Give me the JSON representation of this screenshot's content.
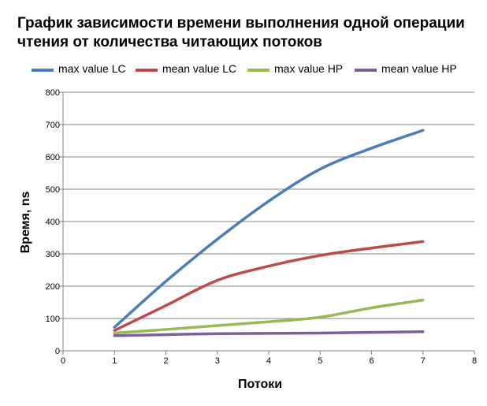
{
  "chart_data": {
    "type": "line",
    "title": "График зависимости времени выполнения одной операции чтения от количества читающих потоков",
    "xlabel": "Потоки",
    "ylabel": "Время, ns",
    "xlim": [
      0,
      8
    ],
    "ylim": [
      0,
      800
    ],
    "xticks": [
      0,
      1,
      2,
      3,
      4,
      5,
      6,
      7,
      8
    ],
    "yticks": [
      0,
      100,
      200,
      300,
      400,
      500,
      600,
      700,
      800
    ],
    "grid": "horizontal",
    "legend": "top",
    "series": [
      {
        "name": "max value LC",
        "color": "#4a7ebb",
        "x": [
          1,
          2,
          3,
          4,
          5,
          6,
          7
        ],
        "values": [
          73,
          215,
          345,
          463,
          562,
          627,
          682
        ]
      },
      {
        "name": "mean value LC",
        "color": "#be4b48",
        "x": [
          1,
          2,
          3,
          4,
          5,
          6,
          7
        ],
        "values": [
          63,
          140,
          218,
          262,
          295,
          318,
          338
        ]
      },
      {
        "name": "max value HP",
        "color": "#98b954",
        "x": [
          1,
          2,
          3,
          4,
          5,
          6,
          7
        ],
        "values": [
          55,
          66,
          78,
          90,
          104,
          133,
          157
        ]
      },
      {
        "name": "mean value HP",
        "color": "#7d5fa0",
        "x": [
          1,
          2,
          3,
          4,
          5,
          6,
          7
        ],
        "values": [
          47,
          50,
          53,
          54,
          55,
          57,
          59
        ]
      }
    ]
  }
}
